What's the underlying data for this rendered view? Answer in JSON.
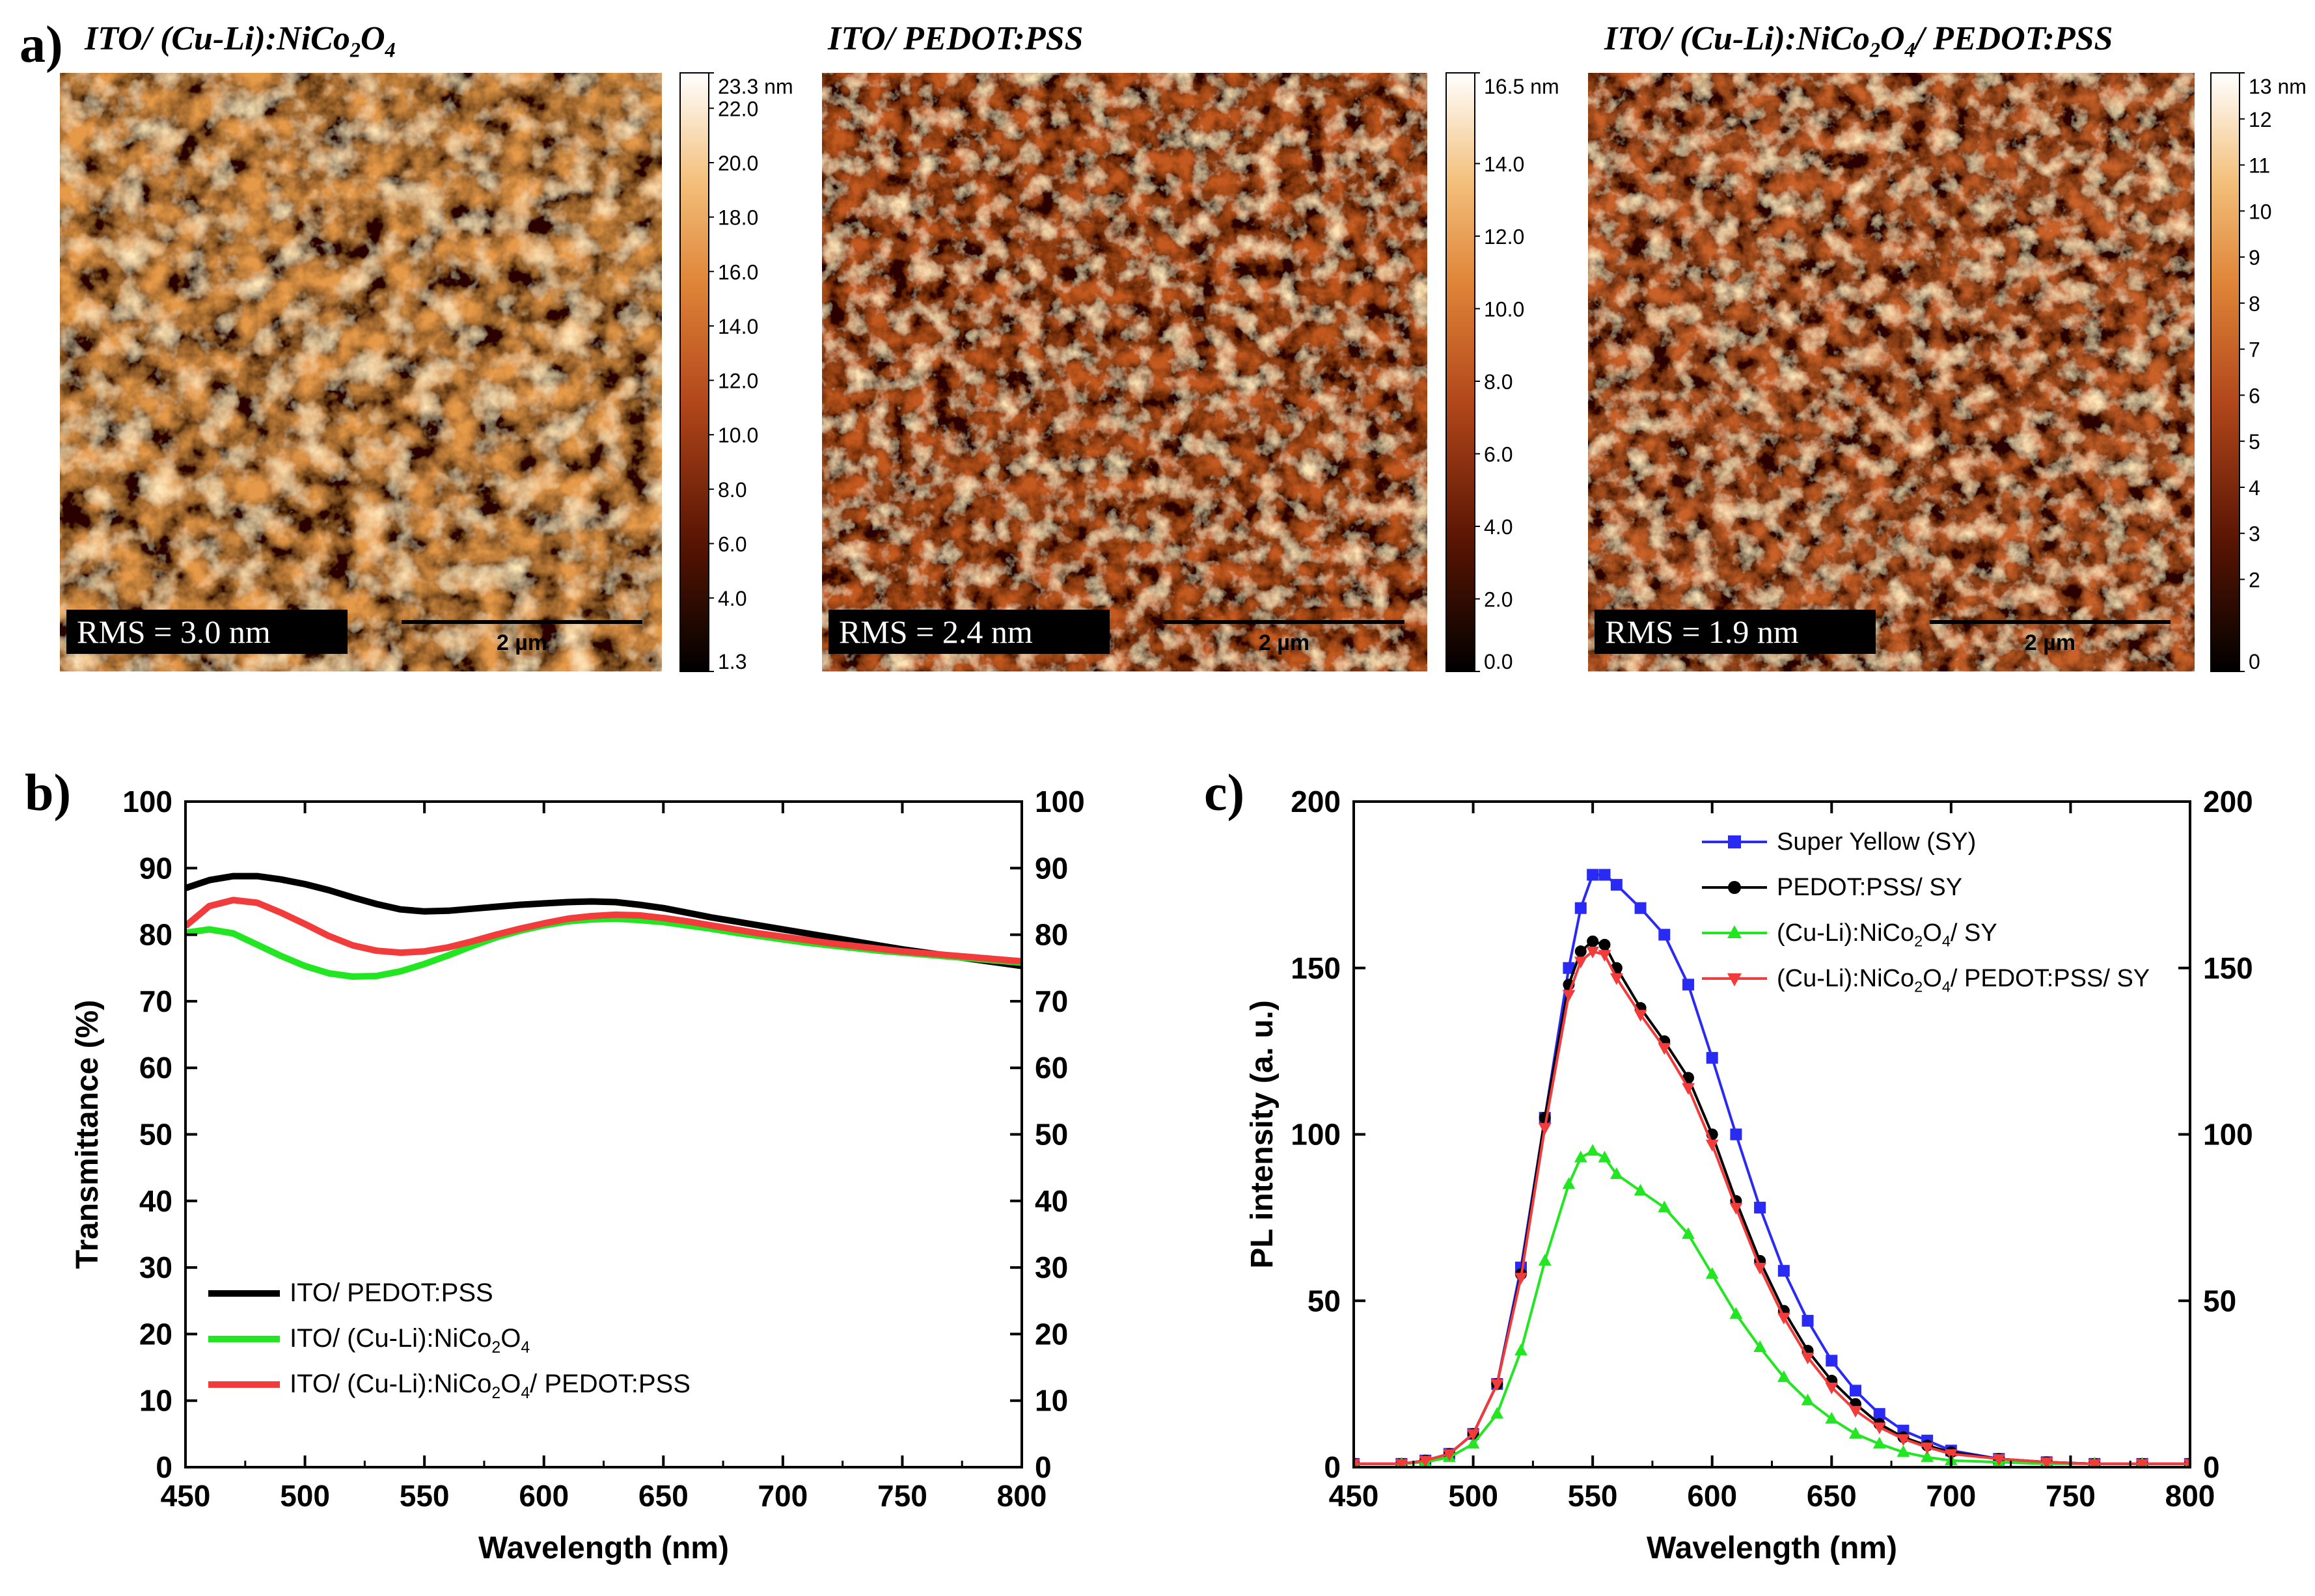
{
  "panel_labels": {
    "a": "a)",
    "b": "b)",
    "c": "c)"
  },
  "afm_panels": [
    {
      "title_parts": [
        "ITO/ (Cu-Li):NiCo",
        "2",
        "O",
        "4"
      ],
      "rms": "RMS = 3.0 nm",
      "scale_bar": "2 µm",
      "colorbar_ticks": [
        "23.3 nm",
        "22.0",
        "20.0",
        "18.0",
        "16.0",
        "14.0",
        "12.0",
        "10.0",
        "8.0",
        "6.0",
        "4.0",
        "1.3"
      ],
      "colorbar_values": [
        23.3,
        22.0,
        20.0,
        18.0,
        16.0,
        14.0,
        12.0,
        10.0,
        8.0,
        6.0,
        4.0,
        1.3
      ],
      "range": [
        1.3,
        23.3
      ],
      "base_color": "#e59a4a",
      "seed": 11
    },
    {
      "title_parts": [
        "ITO/ PEDOT:PSS"
      ],
      "rms": "RMS = 2.4 nm",
      "scale_bar": "2 µm",
      "colorbar_ticks": [
        "16.5 nm",
        "14.0",
        "12.0",
        "10.0",
        "8.0",
        "6.0",
        "4.0",
        "2.0",
        "0.0"
      ],
      "colorbar_values": [
        16.5,
        14.0,
        12.0,
        10.0,
        8.0,
        6.0,
        4.0,
        2.0,
        0.0
      ],
      "range": [
        0.0,
        16.5
      ],
      "base_color": "#c25a22",
      "seed": 23
    },
    {
      "title_parts": [
        "ITO/ (Cu-Li):NiCo",
        "2",
        "O",
        "4",
        "/ PEDOT:PSS"
      ],
      "rms": "RMS = 1.9 nm",
      "scale_bar": "2 µm",
      "colorbar_ticks": [
        "13 nm",
        "12",
        "11",
        "10",
        "9",
        "8",
        "7",
        "6",
        "5",
        "4",
        "3",
        "2",
        "0"
      ],
      "colorbar_values": [
        13,
        12,
        11,
        10,
        9,
        8,
        7,
        6,
        5,
        4,
        3,
        2,
        0
      ],
      "range": [
        0,
        13
      ],
      "base_color": "#c8622a",
      "seed": 37
    }
  ],
  "colors": {
    "black": "#000000",
    "green": "#22e622",
    "red": "#f23b3b",
    "blue": "#2a2af5"
  },
  "chart_data": [
    {
      "type": "line",
      "panel": "b",
      "xlabel": "Wavelength (nm)",
      "ylabel": "Transmittance (%)",
      "xlim": [
        450,
        800
      ],
      "ylim": [
        0,
        100
      ],
      "xticks": [
        450,
        500,
        550,
        600,
        650,
        700,
        750,
        800
      ],
      "yticks": [
        0,
        10,
        20,
        30,
        40,
        50,
        60,
        70,
        80,
        90,
        100
      ],
      "right_axis_ticks": [
        0,
        10,
        20,
        30,
        40,
        50,
        60,
        70,
        80,
        90,
        100
      ],
      "legend_position": "lower-left",
      "series": [
        {
          "name": "ITO/ PEDOT:PSS",
          "legend_parts": [
            "ITO/ PEDOT:PSS"
          ],
          "color": "#000000",
          "x": [
            450,
            460,
            470,
            480,
            490,
            500,
            510,
            520,
            530,
            540,
            550,
            560,
            570,
            580,
            590,
            600,
            610,
            620,
            630,
            640,
            650,
            660,
            670,
            680,
            690,
            700,
            710,
            720,
            730,
            740,
            750,
            760,
            770,
            780,
            790,
            800
          ],
          "y": [
            87,
            88.2,
            88.8,
            88.8,
            88.3,
            87.6,
            86.7,
            85.6,
            84.6,
            83.8,
            83.5,
            83.6,
            83.9,
            84.2,
            84.5,
            84.7,
            84.9,
            85,
            84.9,
            84.5,
            84,
            83.3,
            82.6,
            82,
            81.4,
            80.8,
            80.2,
            79.6,
            79,
            78.4,
            77.8,
            77.3,
            76.8,
            76.3,
            75.8,
            75.3
          ]
        },
        {
          "name": "ITO/ (Cu-Li):NiCo2O4",
          "legend_parts": [
            "ITO/ (Cu-Li):NiCo",
            "2",
            "O",
            "4"
          ],
          "color": "#22e622",
          "x": [
            450,
            460,
            470,
            480,
            490,
            500,
            510,
            520,
            530,
            540,
            550,
            560,
            570,
            580,
            590,
            600,
            610,
            620,
            630,
            640,
            650,
            660,
            670,
            680,
            690,
            700,
            710,
            720,
            730,
            740,
            750,
            760,
            770,
            780,
            790,
            800
          ],
          "y": [
            80.3,
            80.8,
            80.2,
            78.5,
            76.8,
            75.3,
            74.2,
            73.7,
            73.8,
            74.5,
            75.6,
            76.9,
            78.3,
            79.6,
            80.6,
            81.4,
            82,
            82.3,
            82.4,
            82.2,
            81.9,
            81.4,
            80.9,
            80.3,
            79.8,
            79.3,
            78.8,
            78.4,
            78,
            77.6,
            77.3,
            77,
            76.7,
            76.4,
            76.1,
            75.8
          ]
        },
        {
          "name": "ITO/ (Cu-Li):NiCo2O4/ PEDOT:PSS",
          "legend_parts": [
            "ITO/ (Cu-Li):NiCo",
            "2",
            "O",
            "4",
            "/ PEDOT:PSS"
          ],
          "color": "#f23b3b",
          "x": [
            450,
            460,
            470,
            480,
            490,
            500,
            510,
            520,
            530,
            540,
            550,
            560,
            570,
            580,
            590,
            600,
            610,
            620,
            630,
            640,
            650,
            660,
            670,
            680,
            690,
            700,
            710,
            720,
            730,
            740,
            750,
            760,
            770,
            780,
            790,
            800
          ],
          "y": [
            81.3,
            84.3,
            85.2,
            84.8,
            83.3,
            81.6,
            79.8,
            78.4,
            77.6,
            77.3,
            77.5,
            78.1,
            79,
            80,
            80.9,
            81.7,
            82.4,
            82.8,
            83,
            82.9,
            82.5,
            82,
            81.4,
            80.8,
            80.2,
            79.7,
            79.2,
            78.7,
            78.3,
            77.9,
            77.5,
            77.2,
            76.9,
            76.6,
            76.3,
            76
          ]
        }
      ]
    },
    {
      "type": "scatter",
      "panel": "c",
      "xlabel": "Wavelength (nm)",
      "ylabel": "PL intensity (a. u.)",
      "xlim": [
        450,
        800
      ],
      "ylim": [
        0,
        200
      ],
      "xticks": [
        450,
        500,
        550,
        600,
        650,
        700,
        750,
        800
      ],
      "yticks": [
        0,
        50,
        100,
        150,
        200
      ],
      "right_axis_ticks": [
        0,
        50,
        100,
        150,
        200
      ],
      "legend_position": "top-right",
      "series": [
        {
          "name": "Super Yellow (SY)",
          "legend_parts": [
            "Super Yellow (SY)"
          ],
          "color": "#2a2af5",
          "marker": "square",
          "x": [
            450,
            470,
            480,
            490,
            500,
            510,
            520,
            530,
            540,
            545,
            550,
            555,
            560,
            570,
            580,
            590,
            600,
            610,
            620,
            630,
            640,
            650,
            660,
            670,
            680,
            690,
            700,
            720,
            740,
            760,
            780,
            800
          ],
          "y": [
            1,
            1,
            2,
            4,
            10,
            25,
            60,
            105,
            150,
            168,
            178,
            178,
            175,
            168,
            160,
            145,
            123,
            100,
            78,
            59,
            44,
            32,
            23,
            16,
            11,
            8,
            5,
            2.5,
            1.5,
            1,
            1,
            1
          ]
        },
        {
          "name": "PEDOT:PSS/ SY",
          "legend_parts": [
            "PEDOT:PSS/ SY"
          ],
          "color": "#000000",
          "marker": "circle",
          "x": [
            450,
            470,
            480,
            490,
            500,
            510,
            520,
            530,
            540,
            545,
            550,
            555,
            560,
            570,
            580,
            590,
            600,
            610,
            620,
            630,
            640,
            650,
            660,
            670,
            680,
            690,
            700,
            720,
            740,
            760,
            780,
            800
          ],
          "y": [
            1,
            1,
            2,
            4,
            10,
            25,
            58,
            105,
            145,
            155,
            158,
            157,
            150,
            138,
            128,
            117,
            100,
            80,
            62,
            47,
            35,
            26,
            19,
            13,
            9,
            6.5,
            4.5,
            2.5,
            1.5,
            1,
            1,
            1
          ]
        },
        {
          "name": "(Cu-Li):NiCo2O4/ SY",
          "legend_parts": [
            "(Cu-Li):NiCo",
            "2",
            "O",
            "4",
            "/ SY"
          ],
          "color": "#22e622",
          "marker": "triangle-up",
          "x": [
            450,
            470,
            480,
            490,
            500,
            510,
            520,
            530,
            540,
            545,
            550,
            555,
            560,
            570,
            580,
            590,
            600,
            610,
            620,
            630,
            640,
            650,
            660,
            670,
            680,
            690,
            700,
            720,
            740,
            760,
            780,
            800
          ],
          "y": [
            1,
            1,
            1.5,
            3,
            7,
            16,
            35,
            62,
            85,
            93,
            95,
            93,
            88,
            83,
            78,
            70,
            58,
            46,
            36,
            27,
            20,
            14.5,
            10,
            7,
            4.5,
            3,
            2,
            1.5,
            1,
            1,
            1,
            1
          ]
        },
        {
          "name": "(Cu-Li):NiCo2O4/ PEDOT:PSS/ SY",
          "legend_parts": [
            "(Cu-Li):NiCo",
            "2",
            "O",
            "4",
            "/ PEDOT:PSS/ SY"
          ],
          "color": "#f23b3b",
          "marker": "triangle-down",
          "x": [
            450,
            470,
            480,
            490,
            500,
            510,
            520,
            530,
            540,
            545,
            550,
            555,
            560,
            570,
            580,
            590,
            600,
            610,
            620,
            630,
            640,
            650,
            660,
            670,
            680,
            690,
            700,
            720,
            740,
            760,
            780,
            800
          ],
          "y": [
            1,
            1,
            2,
            4,
            10,
            25,
            57,
            102,
            142,
            152,
            155,
            154,
            147,
            136,
            126,
            114,
            97,
            78,
            60,
            45,
            33,
            24,
            17,
            12,
            8.5,
            6,
            4,
            2.5,
            1.5,
            1,
            1,
            1
          ]
        }
      ]
    }
  ]
}
